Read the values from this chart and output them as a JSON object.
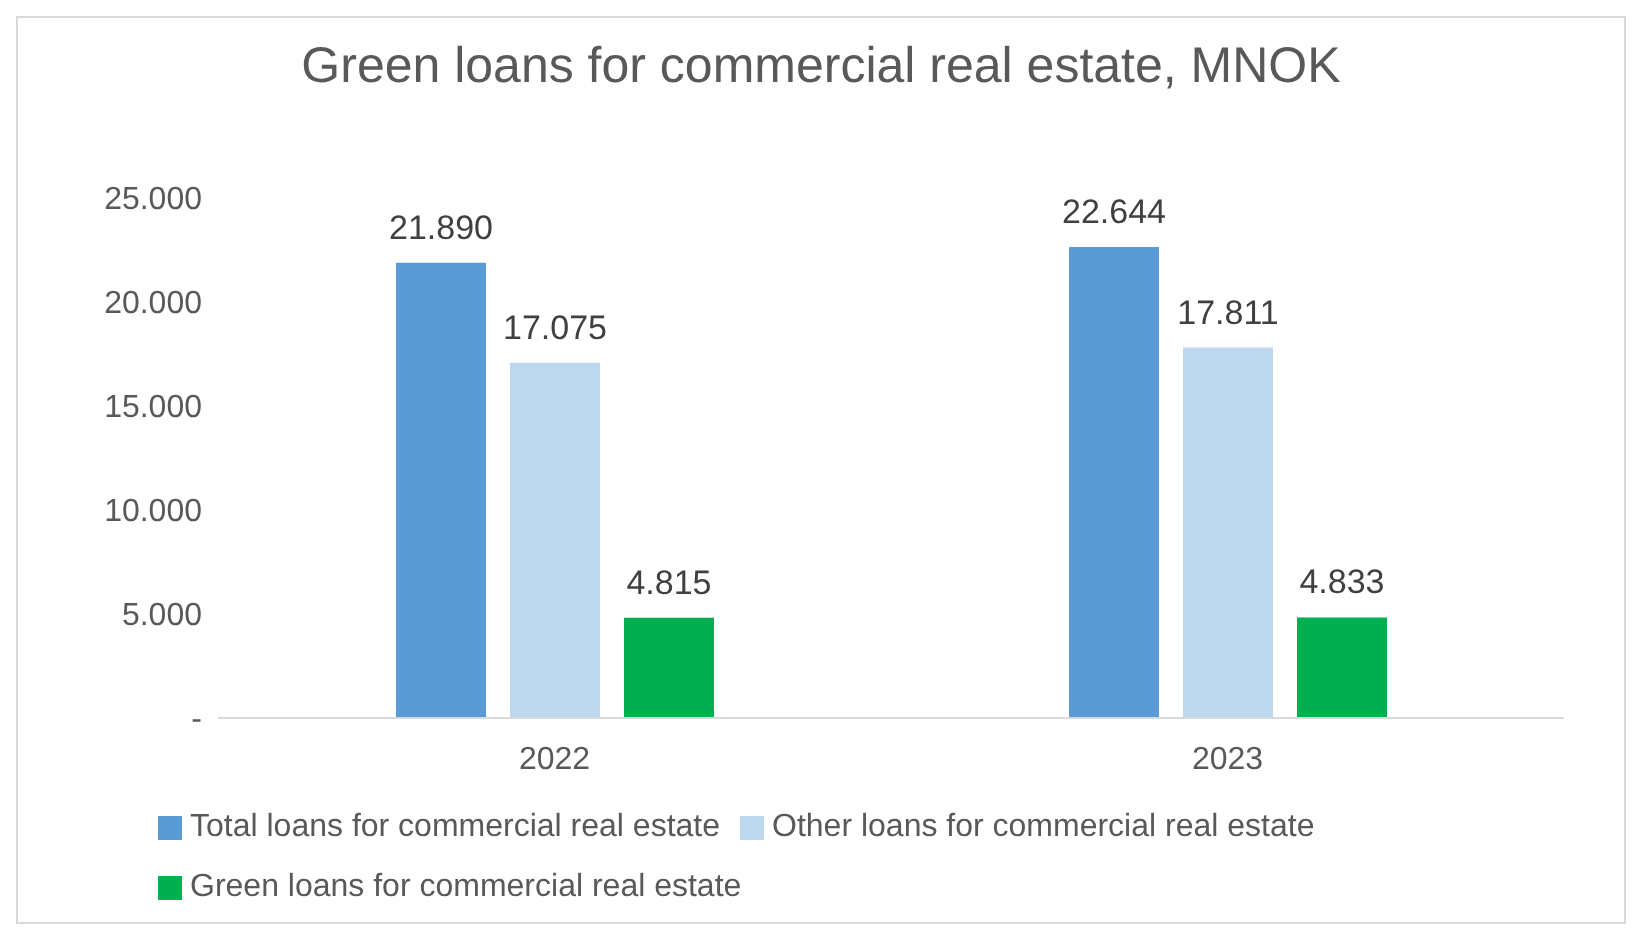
{
  "chart_data": {
    "type": "bar",
    "title": "Green loans for commercial real estate, MNOK",
    "categories": [
      "2022",
      "2023"
    ],
    "series": [
      {
        "name": "Total loans for commercial real estate",
        "color": "#5b9bd5",
        "values": [
          21890,
          22644
        ],
        "value_labels": [
          "21.890",
          "22.644"
        ]
      },
      {
        "name": "Other loans for commercial real estate",
        "color": "#bdd7ee",
        "values": [
          17075,
          17811
        ],
        "value_labels": [
          "17.075",
          "17.811"
        ]
      },
      {
        "name": "Green loans for commercial real estate",
        "color": "#00b050",
        "values": [
          4815,
          4833
        ],
        "value_labels": [
          "4.815",
          "4.833"
        ]
      }
    ],
    "ylim": [
      0,
      25000
    ],
    "yticks": [
      {
        "value": 0,
        "label": "-"
      },
      {
        "value": 5000,
        "label": "5.000"
      },
      {
        "value": 10000,
        "label": "10.000"
      },
      {
        "value": 15000,
        "label": "15.000"
      },
      {
        "value": 20000,
        "label": "20.000"
      },
      {
        "value": 25000,
        "label": "25.000"
      }
    ],
    "legend": "bottom"
  }
}
